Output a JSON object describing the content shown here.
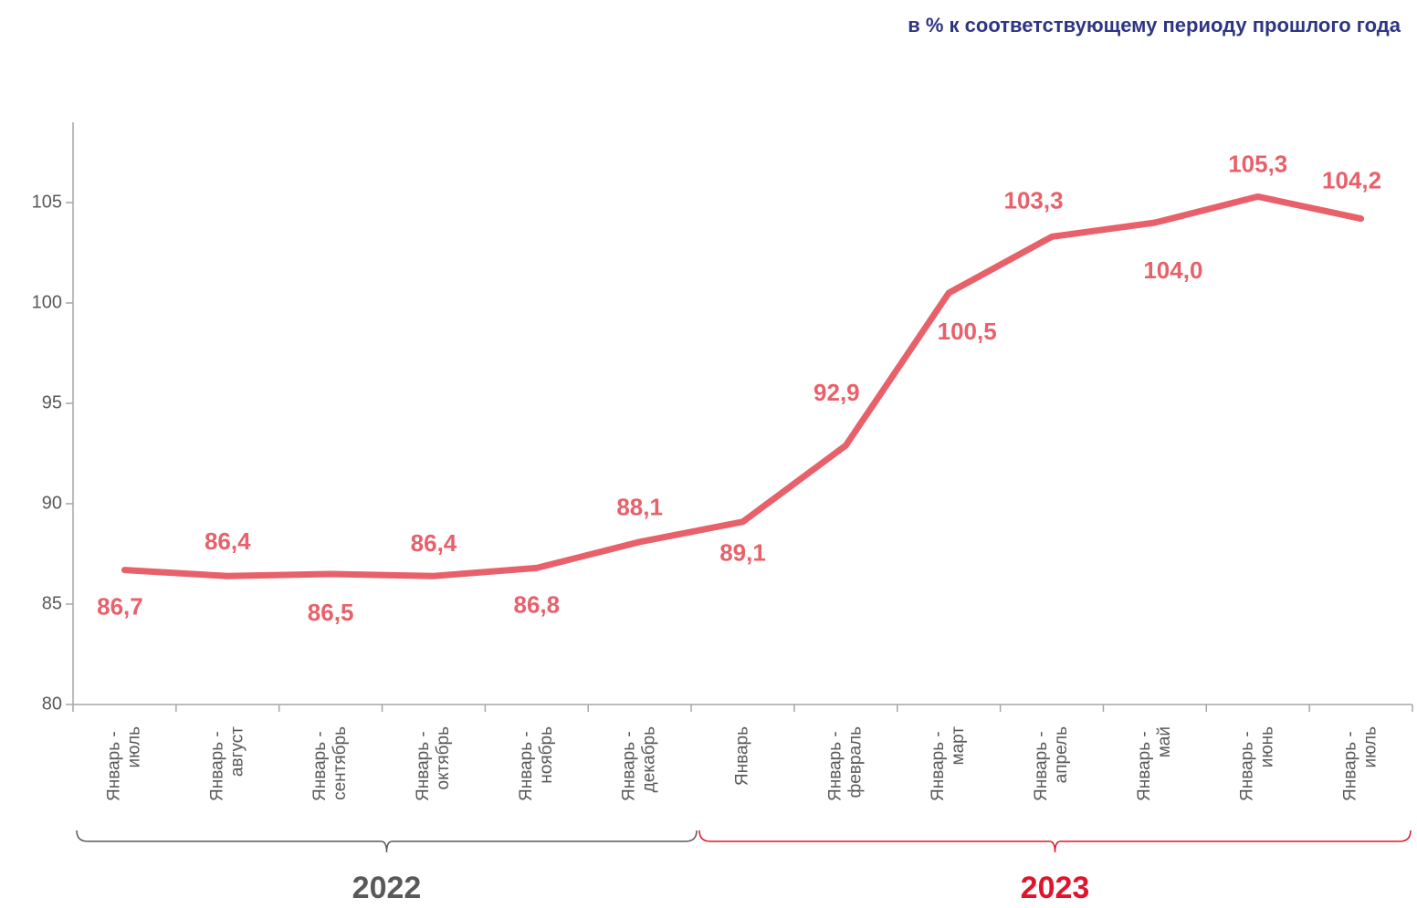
{
  "chart_data": {
    "type": "line",
    "title": "в % к соответствующему периоду прошлого года",
    "categories": [
      "Январь - июль",
      "Январь - август",
      "Январь - сентябрь",
      "Январь - октябрь",
      "Январь - ноябрь",
      "Январь - декабрь",
      "Январь",
      "Январь - февраль",
      "Январь - март",
      "Январь - апрель",
      "Январь - май",
      "Январь - июнь",
      "Январь - июль"
    ],
    "series": [
      {
        "name": "в % к соответствующему периоду прошлого года",
        "color": "#e8606a",
        "values": [
          86.7,
          86.4,
          86.5,
          86.4,
          86.8,
          88.1,
          89.1,
          92.9,
          100.5,
          103.3,
          104.0,
          105.3,
          104.2
        ],
        "value_labels": [
          "86,7",
          "86,4",
          "86,5",
          "86,4",
          "86,8",
          "88,1",
          "89,1",
          "92,9",
          "100,5",
          "103,3",
          "104,0",
          "105,3",
          "104,2"
        ]
      }
    ],
    "ylim": [
      80,
      109
    ],
    "yticks": [
      80,
      85,
      90,
      95,
      100,
      105
    ],
    "groups": [
      {
        "label": "2022",
        "color": "#595959"
      },
      {
        "label": "2023",
        "color": "#e0142d"
      }
    ]
  }
}
